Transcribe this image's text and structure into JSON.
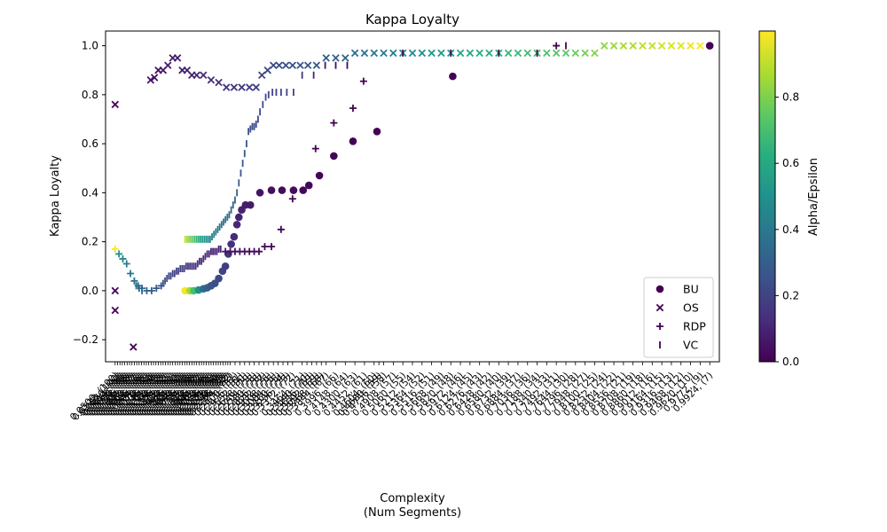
{
  "chart_data": {
    "type": "scatter",
    "title": "Kappa Loyalty",
    "xlabel": "Complexity",
    "xlabel_sub": "(Num Segments)",
    "ylabel": "Kappa Loyalty",
    "ylim": [
      -0.29,
      1.06
    ],
    "yticks": [
      -0.2,
      0.0,
      0.2,
      0.4,
      0.6,
      0.8,
      1.0
    ],
    "xlim": [
      -1,
      63
    ],
    "x_scale": "categorical (dense, overlapping tick labels)",
    "grid": false,
    "legend_position": "lower-right",
    "colormap": "viridis",
    "colorbar": {
      "label": "Alpha/Epsilon",
      "range": [
        0.0,
        1.0
      ],
      "ticks": [
        0.0,
        0.2,
        0.4,
        0.6,
        0.8
      ]
    },
    "series": [
      {
        "name": "BU",
        "marker": "circle",
        "points": [
          [
            7.3,
            0.0,
            0.99
          ],
          [
            7.8,
            0.0,
            0.85
          ],
          [
            8.2,
            0.0,
            0.7
          ],
          [
            8.7,
            0.003,
            0.5
          ],
          [
            9.2,
            0.008,
            0.35
          ],
          [
            9.6,
            0.012,
            0.3
          ],
          [
            10.0,
            0.02,
            0.26
          ],
          [
            10.4,
            0.03,
            0.24
          ],
          [
            10.8,
            0.05,
            0.22
          ],
          [
            11.2,
            0.08,
            0.2
          ],
          [
            11.5,
            0.1,
            0.18
          ],
          [
            11.8,
            0.15,
            0.16
          ],
          [
            12.1,
            0.19,
            0.14
          ],
          [
            12.4,
            0.22,
            0.12
          ],
          [
            12.7,
            0.27,
            0.11
          ],
          [
            12.9,
            0.3,
            0.1
          ],
          [
            13.2,
            0.33,
            0.09
          ],
          [
            13.6,
            0.35,
            0.08
          ],
          [
            14.1,
            0.35,
            0.07
          ],
          [
            15.1,
            0.4,
            0.05
          ],
          [
            16.3,
            0.41,
            0.04
          ],
          [
            17.4,
            0.41,
            0.03
          ],
          [
            18.6,
            0.41,
            0.03
          ],
          [
            19.6,
            0.41,
            0.02
          ],
          [
            20.2,
            0.43,
            0.02
          ],
          [
            21.3,
            0.47,
            0.01
          ],
          [
            22.8,
            0.55,
            0.01
          ],
          [
            24.8,
            0.61,
            0.0
          ],
          [
            27.3,
            0.65,
            0.0
          ],
          [
            35.2,
            0.875,
            0.0
          ],
          [
            62.0,
            1.0,
            0.0
          ]
        ]
      },
      {
        "name": "OS",
        "marker": "x",
        "points": [
          [
            0.0,
            0.76,
            0.01
          ],
          [
            0.0,
            0.0,
            0.01
          ],
          [
            0.0,
            -0.08,
            0.01
          ],
          [
            1.9,
            -0.23,
            0.01
          ],
          [
            3.7,
            0.86,
            0.05
          ],
          [
            4.1,
            0.87,
            0.05
          ],
          [
            4.5,
            0.9,
            0.06
          ],
          [
            5.0,
            0.9,
            0.07
          ],
          [
            5.5,
            0.92,
            0.08
          ],
          [
            6.0,
            0.95,
            0.08
          ],
          [
            6.5,
            0.95,
            0.08
          ],
          [
            7.0,
            0.9,
            0.09
          ],
          [
            7.5,
            0.9,
            0.1
          ],
          [
            8.0,
            0.88,
            0.1
          ],
          [
            8.5,
            0.88,
            0.11
          ],
          [
            9.2,
            0.88,
            0.12
          ],
          [
            10.0,
            0.86,
            0.13
          ],
          [
            10.8,
            0.85,
            0.14
          ],
          [
            11.6,
            0.83,
            0.15
          ],
          [
            12.4,
            0.83,
            0.16
          ],
          [
            13.2,
            0.83,
            0.17
          ],
          [
            14.0,
            0.83,
            0.18
          ],
          [
            14.7,
            0.83,
            0.19
          ],
          [
            15.3,
            0.88,
            0.2
          ],
          [
            15.9,
            0.9,
            0.21
          ],
          [
            16.5,
            0.92,
            0.22
          ],
          [
            17.1,
            0.92,
            0.23
          ],
          [
            17.8,
            0.92,
            0.24
          ],
          [
            18.5,
            0.92,
            0.25
          ],
          [
            19.3,
            0.92,
            0.26
          ],
          [
            20.1,
            0.92,
            0.27
          ],
          [
            21.0,
            0.92,
            0.28
          ],
          [
            22.0,
            0.95,
            0.3
          ],
          [
            23.0,
            0.95,
            0.31
          ],
          [
            24.0,
            0.95,
            0.33
          ],
          [
            25.0,
            0.97,
            0.35
          ],
          [
            26.0,
            0.97,
            0.37
          ],
          [
            27.0,
            0.97,
            0.39
          ],
          [
            28.0,
            0.97,
            0.41
          ],
          [
            29.0,
            0.97,
            0.43
          ],
          [
            30.0,
            0.97,
            0.45
          ],
          [
            31.0,
            0.97,
            0.47
          ],
          [
            32.0,
            0.97,
            0.49
          ],
          [
            33.0,
            0.97,
            0.51
          ],
          [
            34.0,
            0.97,
            0.53
          ],
          [
            35.0,
            0.97,
            0.55
          ],
          [
            36.0,
            0.97,
            0.57
          ],
          [
            37.0,
            0.97,
            0.59
          ],
          [
            38.0,
            0.97,
            0.61
          ],
          [
            39.0,
            0.97,
            0.63
          ],
          [
            40.0,
            0.97,
            0.64
          ],
          [
            41.0,
            0.97,
            0.66
          ],
          [
            42.0,
            0.97,
            0.67
          ],
          [
            43.0,
            0.97,
            0.69
          ],
          [
            44.0,
            0.97,
            0.7
          ],
          [
            45.0,
            0.97,
            0.72
          ],
          [
            46.0,
            0.97,
            0.73
          ],
          [
            47.0,
            0.97,
            0.75
          ],
          [
            48.0,
            0.97,
            0.77
          ],
          [
            49.0,
            0.97,
            0.79
          ],
          [
            50.0,
            0.97,
            0.81
          ],
          [
            51.0,
            1.0,
            0.83
          ],
          [
            52.0,
            1.0,
            0.85
          ],
          [
            53.0,
            1.0,
            0.87
          ],
          [
            54.0,
            1.0,
            0.88
          ],
          [
            55.0,
            1.0,
            0.9
          ],
          [
            56.0,
            1.0,
            0.91
          ],
          [
            57.0,
            1.0,
            0.93
          ],
          [
            58.0,
            1.0,
            0.94
          ],
          [
            59.0,
            1.0,
            0.95
          ],
          [
            60.0,
            1.0,
            0.97
          ],
          [
            61.0,
            1.0,
            0.99
          ]
        ]
      },
      {
        "name": "RDP",
        "marker": "plus",
        "points": [
          [
            0.0,
            0.17,
            0.99
          ],
          [
            0.4,
            0.15,
            0.5
          ],
          [
            0.8,
            0.13,
            0.45
          ],
          [
            1.2,
            0.11,
            0.42
          ],
          [
            1.6,
            0.07,
            0.4
          ],
          [
            2.0,
            0.04,
            0.38
          ],
          [
            2.4,
            0.02,
            0.36
          ],
          [
            2.8,
            0.01,
            0.34
          ],
          [
            3.3,
            0.0,
            0.32
          ],
          [
            3.8,
            0.0,
            0.3
          ],
          [
            4.3,
            0.01,
            0.28
          ],
          [
            4.8,
            0.02,
            0.26
          ],
          [
            11.5,
            0.16,
            0.05
          ],
          [
            12.0,
            0.16,
            0.05
          ],
          [
            12.5,
            0.16,
            0.04
          ],
          [
            13.0,
            0.16,
            0.04
          ],
          [
            13.5,
            0.16,
            0.04
          ],
          [
            14.0,
            0.16,
            0.03
          ],
          [
            14.5,
            0.16,
            0.03
          ],
          [
            15.0,
            0.16,
            0.03
          ],
          [
            15.6,
            0.18,
            0.02
          ],
          [
            16.3,
            0.18,
            0.02
          ],
          [
            17.3,
            0.25,
            0.01
          ],
          [
            18.5,
            0.375,
            0.01
          ],
          [
            20.9,
            0.58,
            0.0
          ],
          [
            22.8,
            0.685,
            0.0
          ],
          [
            24.8,
            0.745,
            0.0
          ],
          [
            25.9,
            0.855,
            0.0
          ],
          [
            46.0,
            1.0,
            0.0
          ]
        ]
      },
      {
        "name": "VC",
        "marker": "vline",
        "points": [
          [
            2.2,
            0.02,
            0.35
          ],
          [
            2.5,
            0.01,
            0.34
          ],
          [
            2.8,
            0.0,
            0.33
          ],
          [
            5.0,
            0.03,
            0.25
          ],
          [
            5.2,
            0.04,
            0.24
          ],
          [
            5.4,
            0.05,
            0.23
          ],
          [
            5.6,
            0.06,
            0.22
          ],
          [
            5.8,
            0.06,
            0.21
          ],
          [
            6.0,
            0.07,
            0.2
          ],
          [
            6.2,
            0.07,
            0.2
          ],
          [
            6.4,
            0.08,
            0.19
          ],
          [
            6.6,
            0.08,
            0.19
          ],
          [
            6.8,
            0.09,
            0.18
          ],
          [
            7.0,
            0.09,
            0.18
          ],
          [
            7.2,
            0.09,
            0.17
          ],
          [
            7.4,
            0.1,
            0.17
          ],
          [
            7.6,
            0.1,
            0.16
          ],
          [
            7.8,
            0.1,
            0.16
          ],
          [
            8.0,
            0.1,
            0.15
          ],
          [
            8.2,
            0.1,
            0.15
          ],
          [
            8.4,
            0.1,
            0.14
          ],
          [
            8.6,
            0.11,
            0.14
          ],
          [
            8.8,
            0.12,
            0.13
          ],
          [
            9.0,
            0.12,
            0.13
          ],
          [
            9.2,
            0.13,
            0.12
          ],
          [
            9.4,
            0.14,
            0.12
          ],
          [
            9.6,
            0.15,
            0.11
          ],
          [
            9.8,
            0.15,
            0.11
          ],
          [
            10.0,
            0.16,
            0.1
          ],
          [
            10.2,
            0.16,
            0.1
          ],
          [
            10.4,
            0.16,
            0.1
          ],
          [
            10.6,
            0.16,
            0.09
          ],
          [
            10.8,
            0.17,
            0.09
          ],
          [
            11.0,
            0.17,
            0.09
          ],
          [
            7.3,
            0.21,
            0.9
          ],
          [
            7.5,
            0.21,
            0.86
          ],
          [
            7.7,
            0.21,
            0.82
          ],
          [
            7.9,
            0.21,
            0.78
          ],
          [
            8.1,
            0.21,
            0.74
          ],
          [
            8.3,
            0.21,
            0.7
          ],
          [
            8.5,
            0.21,
            0.66
          ],
          [
            8.7,
            0.21,
            0.62
          ],
          [
            8.9,
            0.21,
            0.58
          ],
          [
            9.1,
            0.21,
            0.55
          ],
          [
            9.3,
            0.21,
            0.52
          ],
          [
            9.5,
            0.21,
            0.49
          ],
          [
            9.7,
            0.21,
            0.47
          ],
          [
            9.9,
            0.21,
            0.45
          ],
          [
            10.1,
            0.22,
            0.43
          ],
          [
            10.3,
            0.23,
            0.42
          ],
          [
            10.5,
            0.24,
            0.41
          ],
          [
            10.7,
            0.25,
            0.4
          ],
          [
            10.9,
            0.26,
            0.39
          ],
          [
            11.1,
            0.27,
            0.38
          ],
          [
            11.3,
            0.28,
            0.37
          ],
          [
            11.5,
            0.29,
            0.36
          ],
          [
            11.7,
            0.3,
            0.35
          ],
          [
            11.9,
            0.31,
            0.34
          ],
          [
            12.1,
            0.33,
            0.33
          ],
          [
            12.3,
            0.35,
            0.32
          ],
          [
            12.5,
            0.37,
            0.31
          ],
          [
            12.7,
            0.4,
            0.3
          ],
          [
            12.9,
            0.44,
            0.29
          ],
          [
            13.1,
            0.48,
            0.28
          ],
          [
            13.3,
            0.52,
            0.27
          ],
          [
            13.5,
            0.56,
            0.26
          ],
          [
            13.7,
            0.6,
            0.26
          ],
          [
            13.9,
            0.65,
            0.25
          ],
          [
            14.1,
            0.66,
            0.25
          ],
          [
            14.3,
            0.67,
            0.24
          ],
          [
            14.5,
            0.67,
            0.24
          ],
          [
            14.7,
            0.68,
            0.23
          ],
          [
            14.9,
            0.7,
            0.23
          ],
          [
            15.1,
            0.73,
            0.22
          ],
          [
            15.4,
            0.76,
            0.22
          ],
          [
            15.7,
            0.79,
            0.21
          ],
          [
            16.0,
            0.8,
            0.21
          ],
          [
            16.4,
            0.81,
            0.2
          ],
          [
            16.8,
            0.81,
            0.2
          ],
          [
            17.3,
            0.81,
            0.2
          ],
          [
            17.9,
            0.81,
            0.2
          ],
          [
            18.6,
            0.81,
            0.2
          ],
          [
            19.5,
            0.88,
            0.15
          ],
          [
            20.7,
            0.88,
            0.1
          ],
          [
            21.9,
            0.92,
            0.05
          ],
          [
            23.0,
            0.92,
            0.03
          ],
          [
            24.2,
            0.92,
            0.02
          ],
          [
            30.0,
            0.97,
            0.01
          ],
          [
            35.0,
            0.97,
            0.01
          ],
          [
            40.0,
            0.97,
            0.01
          ],
          [
            44.0,
            0.97,
            0.01
          ],
          [
            47.0,
            1.0,
            0.01
          ]
        ]
      }
    ]
  }
}
